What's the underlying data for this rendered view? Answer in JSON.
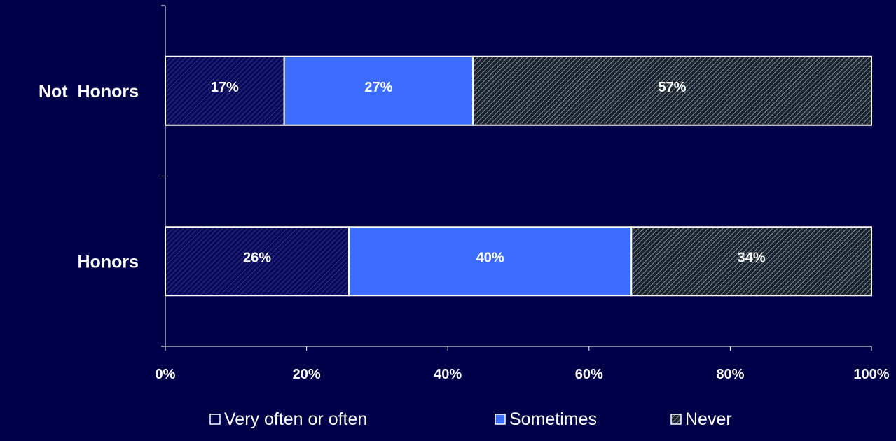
{
  "chart_data": {
    "type": "bar",
    "orientation": "horizontal",
    "stacked": "percent",
    "title": "",
    "xlabel": "",
    "ylabel": "",
    "xlim": [
      0,
      100
    ],
    "x_ticks": [
      "0%",
      "20%",
      "40%",
      "60%",
      "80%",
      "100%"
    ],
    "categories": [
      "Not  Honors",
      "Honors"
    ],
    "series": [
      {
        "name": "Very often or often",
        "values": [
          17,
          26
        ],
        "labels": [
          "17%",
          "26%"
        ],
        "color": "#0a0a5c",
        "pattern": "diagonal-dark"
      },
      {
        "name": "Sometimes",
        "values": [
          27,
          40
        ],
        "labels": [
          "27%",
          "40%"
        ],
        "color": "#3b6cff",
        "pattern": "solid"
      },
      {
        "name": "Never",
        "values": [
          57,
          34
        ],
        "labels": [
          "57%",
          "34%"
        ],
        "color": "#2a3340",
        "pattern": "diagonal-gray"
      }
    ],
    "legend_position": "bottom",
    "grid": false,
    "colors": {
      "background": "#00004a",
      "text": "#ffffff",
      "axis": "#ffffff"
    }
  }
}
